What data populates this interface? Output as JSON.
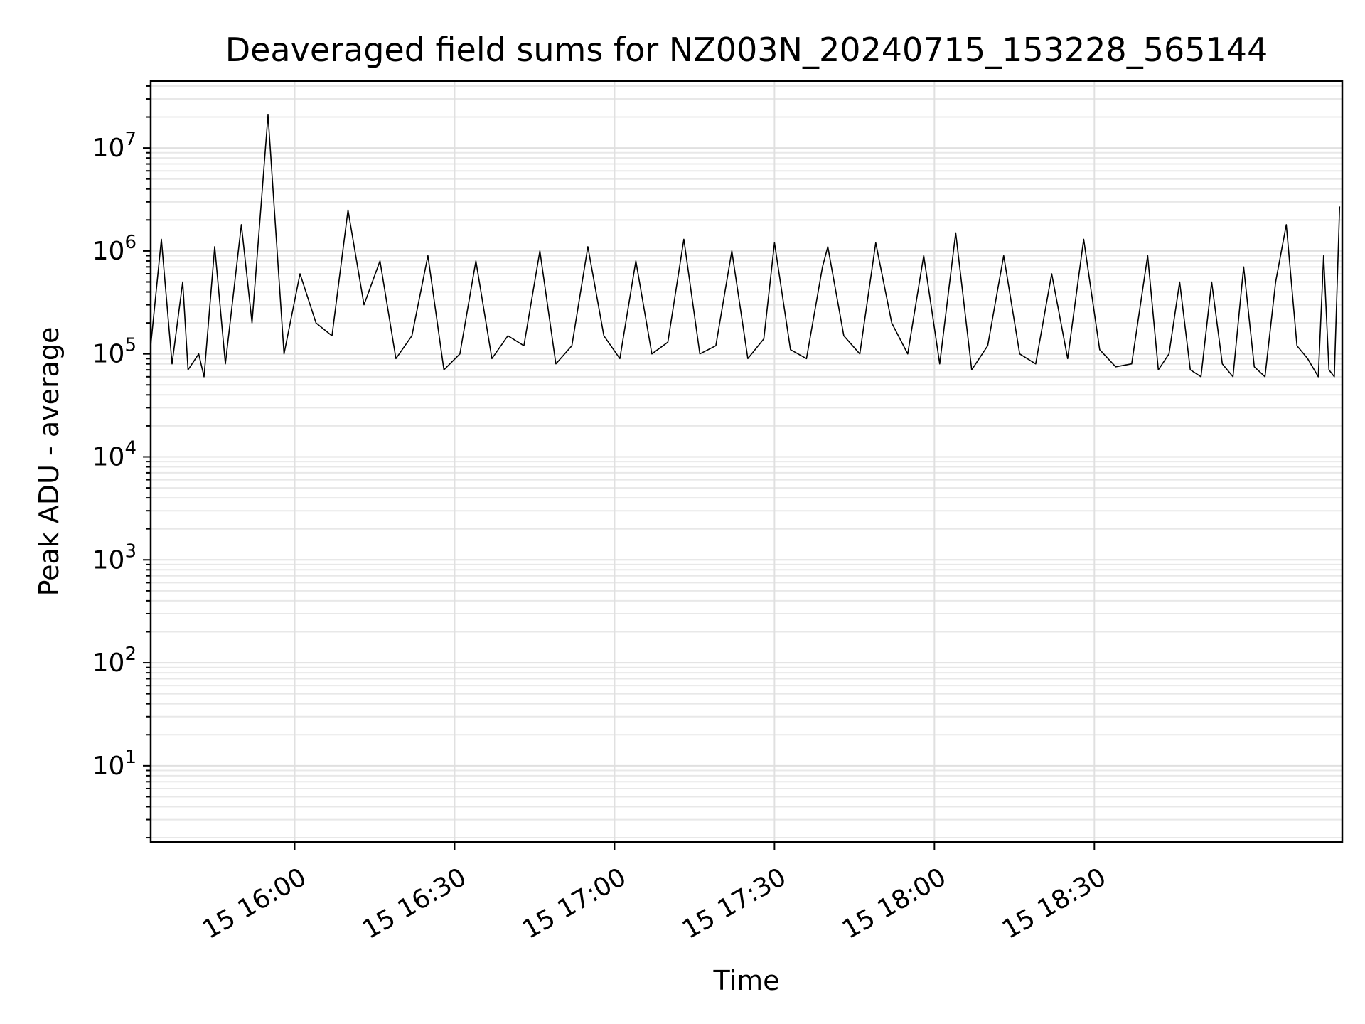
{
  "chart_data": {
    "type": "line",
    "title": "Deaveraged field sums for NZ003N_20240715_153228_565144",
    "xlabel": "Time",
    "ylabel": "Peak ADU - average",
    "yscale": "log",
    "grid": true,
    "line_color": "#000000",
    "xlim": [
      "2024-07-15 15:33:00",
      "2024-07-15 19:16:30"
    ],
    "ylim_exponent": [
      0.26,
      7.65
    ],
    "x_ticks": [
      {
        "time": "2024-07-15 16:00",
        "label": "15 16:00"
      },
      {
        "time": "2024-07-15 16:30",
        "label": "15 16:30"
      },
      {
        "time": "2024-07-15 17:00",
        "label": "15 17:00"
      },
      {
        "time": "2024-07-15 17:30",
        "label": "15 17:30"
      },
      {
        "time": "2024-07-15 18:00",
        "label": "15 18:00"
      },
      {
        "time": "2024-07-15 18:30",
        "label": "15 18:30"
      }
    ],
    "y_ticks": [
      {
        "exp": 1,
        "base": "10",
        "sup": "1"
      },
      {
        "exp": 2,
        "base": "10",
        "sup": "2"
      },
      {
        "exp": 3,
        "base": "10",
        "sup": "3"
      },
      {
        "exp": 4,
        "base": "10",
        "sup": "4"
      },
      {
        "exp": 5,
        "base": "10",
        "sup": "5"
      },
      {
        "exp": 6,
        "base": "10",
        "sup": "6"
      },
      {
        "exp": 7,
        "base": "10",
        "sup": "7"
      }
    ],
    "series": [
      {
        "x": [
          "2024-07-15 15:33",
          "2024-07-15 15:35",
          "2024-07-15 15:37",
          "2024-07-15 15:39",
          "2024-07-15 15:40",
          "2024-07-15 15:42",
          "2024-07-15 15:43",
          "2024-07-15 15:45",
          "2024-07-15 15:47",
          "2024-07-15 15:50",
          "2024-07-15 15:52",
          "2024-07-15 15:55",
          "2024-07-15 15:58",
          "2024-07-15 16:01",
          "2024-07-15 16:04",
          "2024-07-15 16:07",
          "2024-07-15 16:10",
          "2024-07-15 16:13",
          "2024-07-15 16:16",
          "2024-07-15 16:19",
          "2024-07-15 16:22",
          "2024-07-15 16:25",
          "2024-07-15 16:28",
          "2024-07-15 16:31",
          "2024-07-15 16:34",
          "2024-07-15 16:37",
          "2024-07-15 16:40",
          "2024-07-15 16:43",
          "2024-07-15 16:46",
          "2024-07-15 16:49",
          "2024-07-15 16:52",
          "2024-07-15 16:55",
          "2024-07-15 16:58",
          "2024-07-15 17:01",
          "2024-07-15 17:04",
          "2024-07-15 17:07",
          "2024-07-15 17:10",
          "2024-07-15 17:13",
          "2024-07-15 17:16",
          "2024-07-15 17:19",
          "2024-07-15 17:22",
          "2024-07-15 17:25",
          "2024-07-15 17:28",
          "2024-07-15 17:30",
          "2024-07-15 17:33",
          "2024-07-15 17:36",
          "2024-07-15 17:39",
          "2024-07-15 17:40",
          "2024-07-15 17:43",
          "2024-07-15 17:46",
          "2024-07-15 17:49",
          "2024-07-15 17:52",
          "2024-07-15 17:55",
          "2024-07-15 17:58",
          "2024-07-15 18:01",
          "2024-07-15 18:04",
          "2024-07-15 18:07",
          "2024-07-15 18:10",
          "2024-07-15 18:13",
          "2024-07-15 18:16",
          "2024-07-15 18:19",
          "2024-07-15 18:22",
          "2024-07-15 18:25",
          "2024-07-15 18:28",
          "2024-07-15 18:31",
          "2024-07-15 18:34",
          "2024-07-15 18:37",
          "2024-07-15 18:40",
          "2024-07-15 18:42",
          "2024-07-15 18:44",
          "2024-07-15 18:46",
          "2024-07-15 18:48",
          "2024-07-15 18:50",
          "2024-07-15 18:52",
          "2024-07-15 18:54",
          "2024-07-15 18:56",
          "2024-07-15 18:58",
          "2024-07-15 19:00",
          "2024-07-15 19:02",
          "2024-07-15 19:04",
          "2024-07-15 19:06",
          "2024-07-15 19:08",
          "2024-07-15 19:10",
          "2024-07-15 19:12",
          "2024-07-15 19:13",
          "2024-07-15 19:14",
          "2024-07-15 19:15",
          "2024-07-15 19:16"
        ],
        "y": [
          120000,
          1300000,
          80000,
          500000,
          70000,
          100000,
          60000,
          1100000,
          80000,
          1800000,
          200000,
          21000000,
          100000,
          600000,
          200000,
          150000,
          2500000,
          300000,
          800000,
          90000,
          150000,
          900000,
          70000,
          100000,
          800000,
          90000,
          150000,
          120000,
          1000000,
          80000,
          120000,
          1100000,
          150000,
          90000,
          800000,
          100000,
          130000,
          1300000,
          100000,
          120000,
          1000000,
          90000,
          140000,
          1200000,
          110000,
          90000,
          700000,
          1100000,
          150000,
          100000,
          1200000,
          200000,
          100000,
          900000,
          80000,
          1500000,
          70000,
          120000,
          900000,
          100000,
          80000,
          600000,
          90000,
          1300000,
          110000,
          75000,
          80000,
          900000,
          70000,
          100000,
          500000,
          70000,
          60000,
          500000,
          80000,
          60000,
          700000,
          75000,
          60000,
          500000,
          1800000,
          120000,
          90000,
          60000,
          900000,
          70000,
          60000,
          2700000
        ]
      }
    ]
  }
}
